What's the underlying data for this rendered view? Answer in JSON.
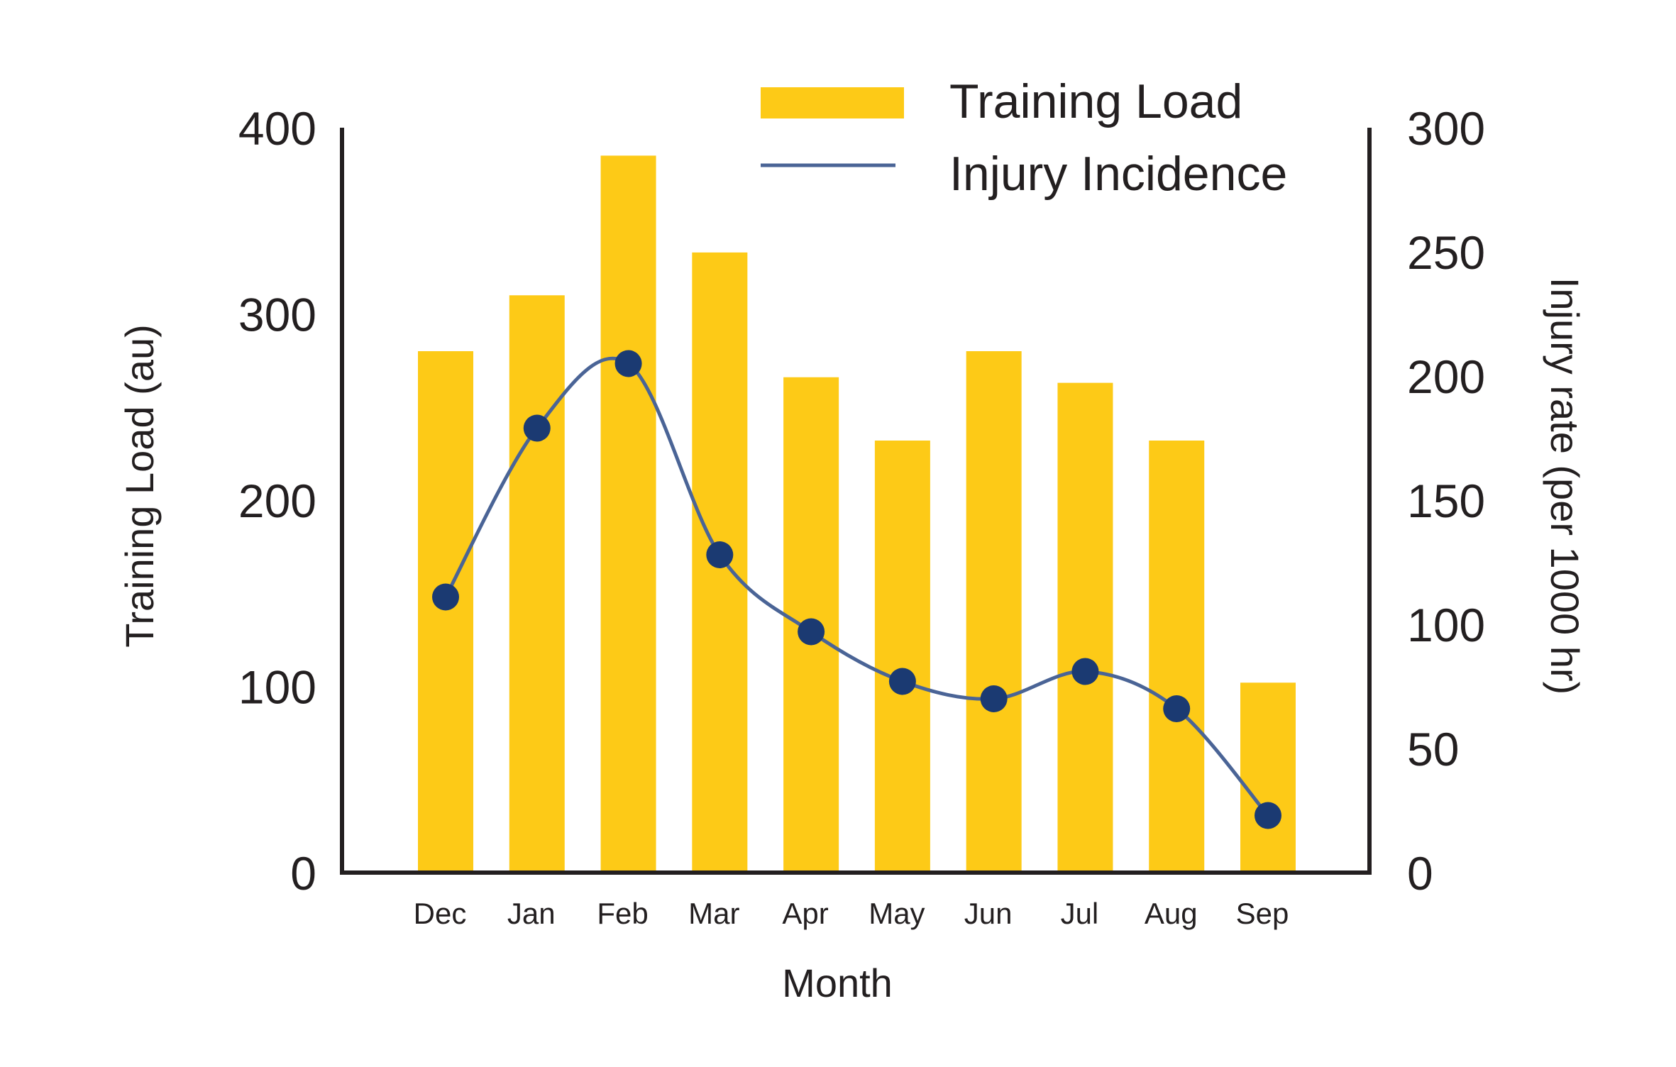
{
  "chart_data": {
    "type": "bar+line",
    "categories": [
      "Dec",
      "Jan",
      "Feb",
      "Mar",
      "Apr",
      "May",
      "Jun",
      "Jul",
      "Aug",
      "Sep"
    ],
    "series": [
      {
        "name": "Training Load",
        "type": "bar",
        "axis": "left",
        "color": "#fdca17",
        "values": [
          280,
          310,
          385,
          333,
          266,
          232,
          280,
          263,
          232,
          102
        ]
      },
      {
        "name": "Injury Incidence",
        "type": "line",
        "axis": "right",
        "color": "#4a6496",
        "marker_color": "#1b3a72",
        "values": [
          111,
          179,
          205,
          128,
          97,
          77,
          70,
          81,
          66,
          23
        ]
      }
    ],
    "xlabel": "Month",
    "ylabel_left": "Training Load (au)",
    "ylabel_right": "Injury rate (per 1000 hr)",
    "ylim_left": [
      0,
      400
    ],
    "ylim_right": [
      0,
      300
    ],
    "yticks_left": [
      "0",
      "100",
      "200",
      "300",
      "400"
    ],
    "yticks_right": [
      "0",
      "50",
      "100",
      "150",
      "200",
      "250",
      "300"
    ],
    "grid": false,
    "legend_position": "top-right"
  }
}
